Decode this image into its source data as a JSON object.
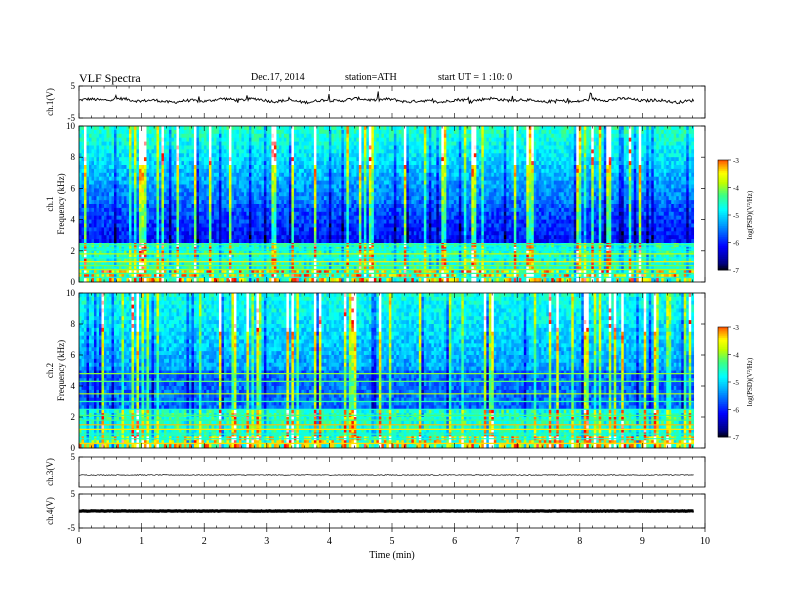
{
  "header": {
    "title": "VLF  Spectra",
    "date": "Dec.17, 2014",
    "station": "station=ATH",
    "start": "start  UT  =   1  :10: 0"
  },
  "chart_data": [
    {
      "type": "line",
      "panel": "ch1",
      "ylabel": "ch.1(V)",
      "ylim": [
        -5,
        5
      ],
      "yticks": [
        "5",
        "-5"
      ],
      "baseline": 0.5,
      "xlim": [
        0,
        10
      ],
      "data_end_min": 9.82
    },
    {
      "type": "heatmap",
      "panel": "spec1",
      "ylabel_channel": "ch.1",
      "ylabel": "Frequency  (kHz)",
      "ylim": [
        0,
        10
      ],
      "yticks": [
        "0",
        "2",
        "4",
        "6",
        "8",
        "10"
      ],
      "colorbar": {
        "label": "log(PSD)(V²/Hz)",
        "range": [
          -7,
          -3
        ],
        "ticks": [
          "-3",
          "-4",
          "-5",
          "-6",
          "-7"
        ]
      }
    },
    {
      "type": "heatmap",
      "panel": "spec2",
      "ylabel_channel": "ch.2",
      "ylabel": "Frequency  (kHz)",
      "ylim": [
        0,
        10
      ],
      "yticks": [
        "0",
        "2",
        "4",
        "6",
        "8",
        "10"
      ],
      "colorbar": {
        "label": "log(PSD)(V²/Hz)",
        "range": [
          -7,
          -3
        ],
        "ticks": [
          "-3",
          "-4",
          "-5",
          "-6",
          "-7"
        ]
      }
    },
    {
      "type": "line",
      "panel": "ch3",
      "ylabel": "ch.3(V)",
      "ylim": [
        -5,
        5
      ],
      "yticks": [
        "5"
      ],
      "baseline": -1
    },
    {
      "type": "line",
      "panel": "ch4",
      "ylabel": "ch.4(V)",
      "ylim": [
        -5,
        5
      ],
      "yticks": [
        "5",
        "-5"
      ],
      "baseline": 0
    }
  ],
  "xaxis": {
    "label": "Time  (min)",
    "range": [
      0,
      10
    ],
    "ticks": [
      "0",
      "1",
      "2",
      "3",
      "4",
      "5",
      "6",
      "7",
      "8",
      "9",
      "10"
    ]
  },
  "colors": {
    "line": "#000000",
    "background": "#ffffff"
  }
}
